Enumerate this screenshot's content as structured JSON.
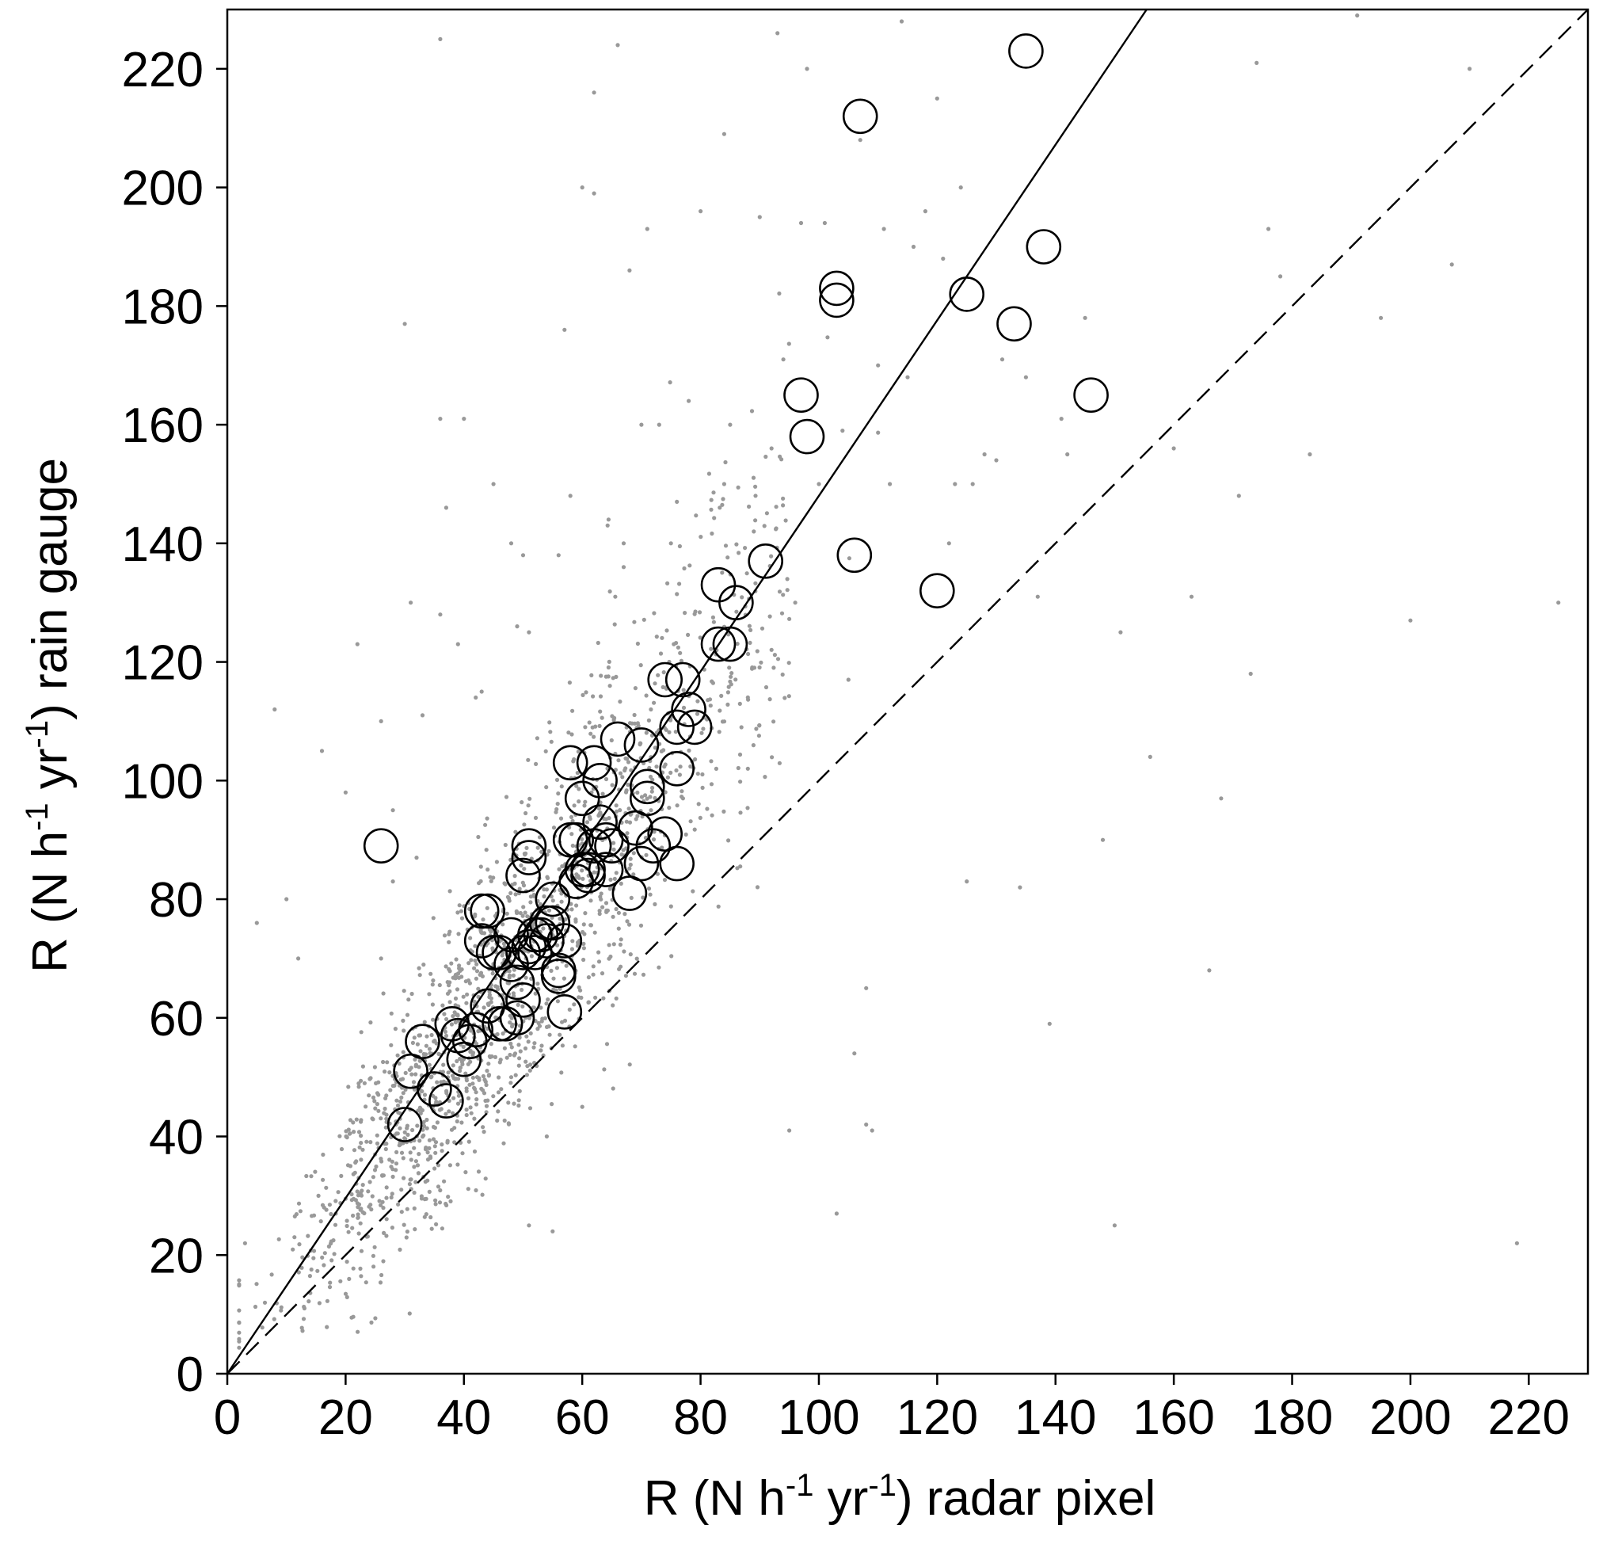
{
  "chart_data": {
    "type": "scatter",
    "xlabel_parts": [
      "R (N h",
      "-1",
      " yr",
      "-1",
      ") radar pixel"
    ],
    "ylabel_parts": [
      "R (N h",
      "-1",
      " yr",
      "-1",
      ") rain gauge"
    ],
    "xlim": [
      0,
      230
    ],
    "ylim": [
      0,
      230
    ],
    "xticks": [
      "0",
      "20",
      "40",
      "60",
      "80",
      "100",
      "120",
      "140",
      "160",
      "180",
      "200",
      "220"
    ],
    "yticks": [
      "0",
      "20",
      "40",
      "60",
      "80",
      "100",
      "120",
      "140",
      "160",
      "180",
      "200",
      "220"
    ],
    "grid": false,
    "lines": [
      {
        "style": "solid",
        "slope": 1.48,
        "intercept": 0
      },
      {
        "style": "dashed",
        "slope": 1.0,
        "intercept": 0
      }
    ],
    "points_color": "#999999",
    "circle_color": "#000000",
    "circles": [
      [
        26,
        89
      ],
      [
        30,
        42
      ],
      [
        31,
        51
      ],
      [
        33,
        56
      ],
      [
        35,
        48
      ],
      [
        37,
        46
      ],
      [
        38,
        59
      ],
      [
        39,
        57
      ],
      [
        40,
        53
      ],
      [
        41,
        56
      ],
      [
        42,
        58
      ],
      [
        43,
        78
      ],
      [
        43,
        73
      ],
      [
        44,
        78
      ],
      [
        44,
        62
      ],
      [
        45,
        71
      ],
      [
        46,
        71
      ],
      [
        46,
        59
      ],
      [
        47,
        59
      ],
      [
        48,
        74
      ],
      [
        48,
        69
      ],
      [
        49,
        60
      ],
      [
        49,
        66
      ],
      [
        50,
        63
      ],
      [
        50,
        84
      ],
      [
        50,
        71
      ],
      [
        51,
        72
      ],
      [
        51,
        89
      ],
      [
        51,
        87
      ],
      [
        52,
        71
      ],
      [
        52,
        74
      ],
      [
        53,
        74
      ],
      [
        54,
        76
      ],
      [
        54,
        73
      ],
      [
        55,
        76
      ],
      [
        55,
        80
      ],
      [
        56,
        68
      ],
      [
        56,
        67
      ],
      [
        57,
        73
      ],
      [
        57,
        61
      ],
      [
        58,
        103
      ],
      [
        58,
        90
      ],
      [
        59,
        83
      ],
      [
        59,
        90
      ],
      [
        60,
        85
      ],
      [
        60,
        97
      ],
      [
        61,
        85
      ],
      [
        61,
        84
      ],
      [
        62,
        103
      ],
      [
        62,
        89
      ],
      [
        63,
        100
      ],
      [
        63,
        93
      ],
      [
        64,
        85
      ],
      [
        64,
        90
      ],
      [
        65,
        89
      ],
      [
        66,
        107
      ],
      [
        68,
        81
      ],
      [
        69,
        92
      ],
      [
        70,
        106
      ],
      [
        70,
        86
      ],
      [
        71,
        99
      ],
      [
        71,
        97
      ],
      [
        72,
        89
      ],
      [
        74,
        91
      ],
      [
        74,
        117
      ],
      [
        76,
        86
      ],
      [
        76,
        102
      ],
      [
        76,
        109
      ],
      [
        77,
        117
      ],
      [
        78,
        112
      ],
      [
        79,
        109
      ],
      [
        83,
        133
      ],
      [
        83,
        123
      ],
      [
        85,
        123
      ],
      [
        86,
        130
      ],
      [
        91,
        137
      ],
      [
        97,
        165
      ],
      [
        98,
        158
      ],
      [
        103,
        183
      ],
      [
        103,
        181
      ],
      [
        106,
        138
      ],
      [
        107,
        212
      ],
      [
        120,
        132
      ],
      [
        125,
        182
      ],
      [
        133,
        177
      ],
      [
        135,
        223
      ],
      [
        138,
        190
      ],
      [
        146,
        165
      ]
    ],
    "outliers": [
      [
        3,
        22
      ],
      [
        5,
        76
      ],
      [
        8,
        112
      ],
      [
        10,
        80
      ],
      [
        12,
        70
      ],
      [
        16,
        105
      ],
      [
        20,
        98
      ],
      [
        22,
        123
      ],
      [
        26,
        110
      ],
      [
        28,
        95
      ],
      [
        30,
        177
      ],
      [
        31,
        130
      ],
      [
        33,
        111
      ],
      [
        36,
        225
      ],
      [
        36,
        128
      ],
      [
        36,
        161
      ],
      [
        37,
        146
      ],
      [
        39,
        123
      ],
      [
        42,
        114
      ],
      [
        43,
        115
      ],
      [
        45,
        150
      ],
      [
        48,
        140
      ],
      [
        49,
        126
      ],
      [
        50,
        138
      ],
      [
        51,
        125
      ],
      [
        51,
        25
      ],
      [
        55,
        24
      ],
      [
        56,
        138
      ],
      [
        57,
        176
      ],
      [
        58,
        148
      ],
      [
        60,
        200
      ],
      [
        62,
        199
      ],
      [
        62,
        216
      ],
      [
        66,
        224
      ],
      [
        67,
        136
      ],
      [
        67,
        140
      ],
      [
        68,
        186
      ],
      [
        70,
        160
      ],
      [
        71,
        193
      ],
      [
        73,
        160
      ],
      [
        75,
        140
      ],
      [
        76,
        147
      ],
      [
        78,
        164
      ],
      [
        80,
        196
      ],
      [
        84,
        209
      ],
      [
        84,
        150
      ],
      [
        85,
        160
      ],
      [
        88,
        102
      ],
      [
        89,
        142
      ],
      [
        90,
        195
      ],
      [
        92,
        156
      ],
      [
        93,
        226
      ],
      [
        94,
        171
      ],
      [
        95,
        41
      ],
      [
        96,
        130
      ],
      [
        97,
        194
      ],
      [
        98,
        220
      ],
      [
        100,
        150
      ],
      [
        101,
        194
      ],
      [
        103,
        27
      ],
      [
        104,
        159
      ],
      [
        105,
        117
      ],
      [
        106,
        54
      ],
      [
        107,
        208
      ],
      [
        108,
        65
      ],
      [
        108,
        42
      ],
      [
        110,
        170
      ],
      [
        111,
        193
      ],
      [
        112,
        150
      ],
      [
        114,
        228
      ],
      [
        115,
        168
      ],
      [
        116,
        190
      ],
      [
        118,
        196
      ],
      [
        120,
        215
      ],
      [
        121,
        188
      ],
      [
        122,
        140
      ],
      [
        123,
        150
      ],
      [
        124,
        200
      ],
      [
        125,
        83
      ],
      [
        126,
        150
      ],
      [
        128,
        155
      ],
      [
        130,
        154
      ],
      [
        131,
        171
      ],
      [
        134,
        82
      ],
      [
        135,
        168
      ],
      [
        137,
        131
      ],
      [
        139,
        59
      ],
      [
        141,
        161
      ],
      [
        142,
        155
      ],
      [
        145,
        178
      ],
      [
        148,
        90
      ],
      [
        150,
        25
      ],
      [
        151,
        125
      ],
      [
        156,
        104
      ],
      [
        160,
        156
      ],
      [
        163,
        131
      ],
      [
        166,
        68
      ],
      [
        168,
        97
      ],
      [
        171,
        148
      ],
      [
        173,
        118
      ],
      [
        174,
        221
      ],
      [
        176,
        193
      ],
      [
        178,
        185
      ],
      [
        183,
        155
      ],
      [
        191,
        229
      ],
      [
        195,
        178
      ],
      [
        200,
        127
      ],
      [
        207,
        187
      ],
      [
        210,
        220
      ],
      [
        218,
        22
      ],
      [
        225,
        130
      ],
      [
        109,
        41
      ],
      [
        26,
        70
      ],
      [
        28,
        83
      ],
      [
        32,
        87
      ],
      [
        40,
        161
      ],
      [
        44,
        85
      ],
      [
        48,
        50
      ],
      [
        54,
        40
      ],
      [
        60,
        45
      ]
    ]
  }
}
